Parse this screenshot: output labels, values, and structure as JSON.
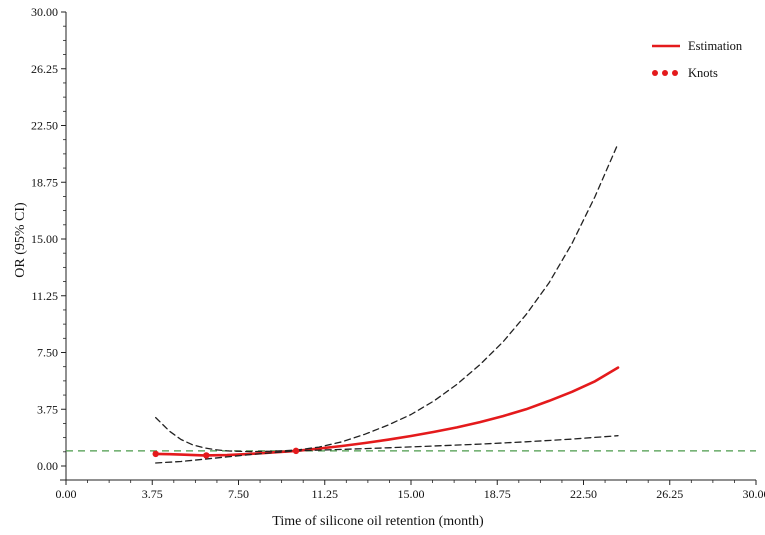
{
  "chart_data": {
    "type": "line",
    "xlabel": "Time of silicone oil retention (month)",
    "ylabel": "OR (95% CI)",
    "xlim": [
      0,
      30
    ],
    "ylim": [
      0,
      30
    ],
    "x_ticks": [
      "0.00",
      "3.75",
      "7.50",
      "11.25",
      "15.00",
      "18.75",
      "22.50",
      "26.25",
      "30.00"
    ],
    "y_ticks": [
      "0.00",
      "3.75",
      "7.50",
      "11.25",
      "15.00",
      "18.75",
      "22.50",
      "26.25",
      "30.00"
    ],
    "reference_line": {
      "y": 1.0,
      "style": "dashed",
      "color": "#4a9a4a"
    },
    "series": [
      {
        "name": "Estimation",
        "style": "solid",
        "color": "#e41a1c",
        "x": [
          3.9,
          4.5,
          5,
          6,
          7,
          8,
          9,
          10,
          11,
          12,
          13,
          14,
          15,
          16,
          17,
          18,
          19,
          20,
          21,
          22,
          23,
          24
        ],
        "y": [
          0.8,
          0.78,
          0.75,
          0.7,
          0.72,
          0.8,
          0.9,
          1.0,
          1.15,
          1.32,
          1.52,
          1.74,
          1.98,
          2.25,
          2.55,
          2.9,
          3.3,
          3.75,
          4.3,
          4.9,
          5.6,
          6.5
        ]
      },
      {
        "name": "95% CI upper",
        "style": "dashed",
        "color": "#222222",
        "x": [
          3.9,
          4.5,
          5,
          5.5,
          6,
          6.5,
          7,
          8,
          9,
          10,
          11,
          12,
          13,
          14,
          15,
          16,
          17,
          18,
          19,
          20,
          21,
          22,
          23,
          24
        ],
        "y": [
          3.2,
          2.3,
          1.75,
          1.4,
          1.2,
          1.08,
          1.0,
          0.95,
          0.98,
          1.05,
          1.25,
          1.6,
          2.1,
          2.7,
          3.4,
          4.3,
          5.4,
          6.7,
          8.2,
          10.0,
          12.1,
          14.7,
          17.8,
          21.3
        ]
      },
      {
        "name": "95% CI lower",
        "style": "dashed",
        "color": "#222222",
        "x": [
          3.9,
          5,
          6,
          7,
          8,
          9,
          10,
          11,
          12,
          14,
          16,
          18,
          20,
          22,
          24
        ],
        "y": [
          0.2,
          0.3,
          0.45,
          0.6,
          0.75,
          0.88,
          1.0,
          1.05,
          1.1,
          1.2,
          1.32,
          1.45,
          1.6,
          1.78,
          2.0
        ]
      }
    ],
    "knots": {
      "name": "Knots",
      "color": "#e41a1c",
      "x": [
        3.9,
        6.1,
        10.0
      ],
      "y": [
        0.8,
        0.7,
        1.0
      ]
    },
    "legend": {
      "position": "top-right",
      "items": [
        {
          "label": "Estimation",
          "marker": "line",
          "color": "#e41a1c"
        },
        {
          "label": "Knots",
          "marker": "dots",
          "color": "#e41a1c"
        }
      ]
    },
    "grid": false
  }
}
